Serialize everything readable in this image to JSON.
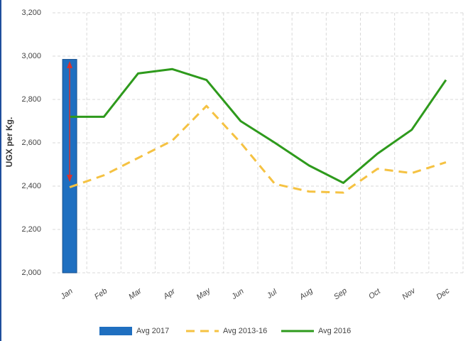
{
  "chart_data": {
    "type": "combo",
    "ylabel": "UGX per Kg.",
    "categories": [
      "Jan",
      "Feb",
      "Mar",
      "Apr",
      "May",
      "Jun",
      "Jul",
      "Aug",
      "Sep",
      "Oct",
      "Nov",
      "Dec"
    ],
    "series": [
      {
        "name": "Avg 2017",
        "type": "bar",
        "color": "#1f6fc0",
        "values": [
          2985,
          null,
          null,
          null,
          null,
          null,
          null,
          null,
          null,
          null,
          null,
          null
        ]
      },
      {
        "name": "Avg 2013-16",
        "type": "line",
        "dashed": true,
        "color": "#f5c242",
        "values": [
          2395,
          2450,
          2530,
          2610,
          2770,
          2600,
          2410,
          2375,
          2370,
          2480,
          2460,
          2510
        ]
      },
      {
        "name": "Avg 2016",
        "type": "line",
        "color": "#2e9a1c",
        "values": [
          2720,
          2720,
          2920,
          2940,
          2890,
          2700,
          2600,
          2495,
          2415,
          2550,
          2660,
          2890
        ]
      }
    ],
    "ylim": [
      2000,
      3200
    ],
    "yticks": [
      {
        "value": 2000,
        "label": "2,000"
      },
      {
        "value": 2200,
        "label": "2,200"
      },
      {
        "value": 2400,
        "label": "2,400"
      },
      {
        "value": 2600,
        "label": "2,600"
      },
      {
        "value": 2800,
        "label": "2,800"
      },
      {
        "value": 3000,
        "label": "3,000"
      },
      {
        "value": 3200,
        "label": "3,200"
      }
    ],
    "grid": true,
    "legend": "bottom"
  }
}
